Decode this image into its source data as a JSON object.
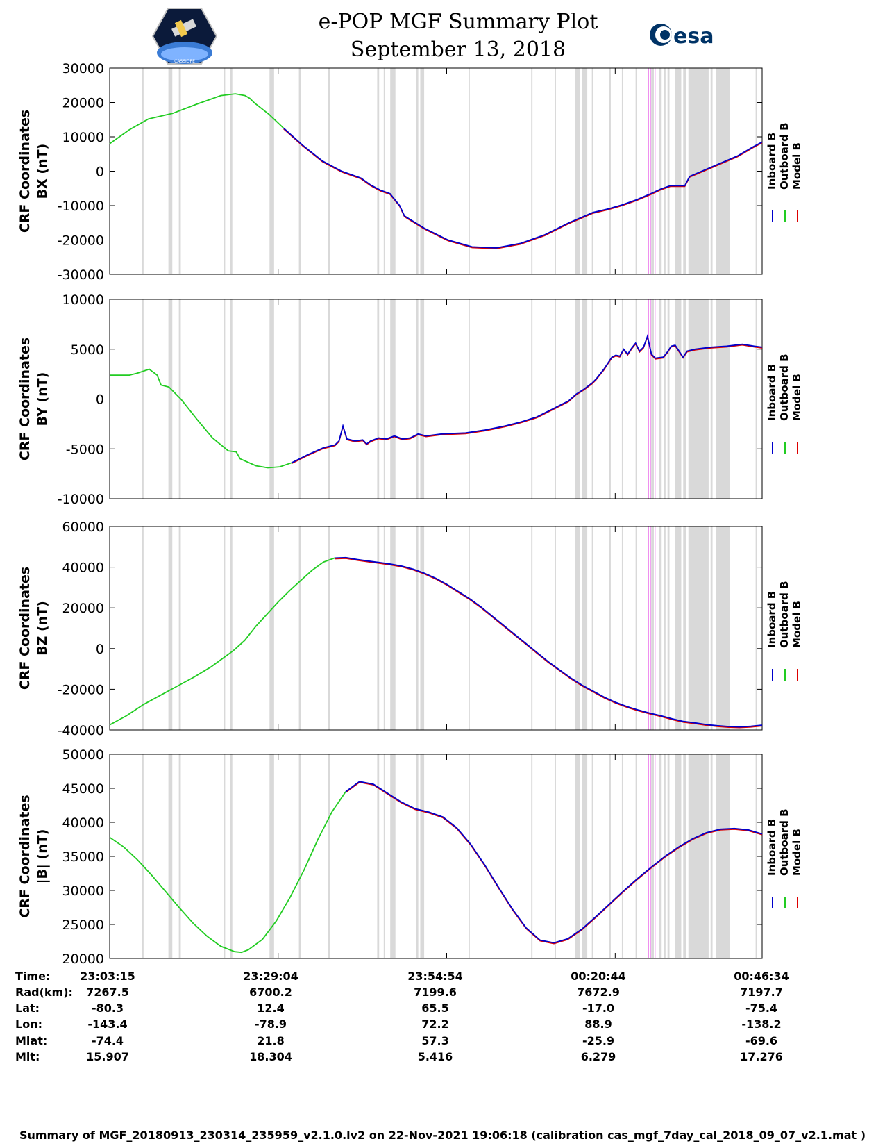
{
  "title": {
    "line1": "e-POP MGF Summary Plot",
    "line2": "September 13, 2018",
    "left_logo": "CASSIOPE",
    "right_logo": "esa"
  },
  "legend_labels": [
    "Inboard B",
    "Outboard B",
    "Model B"
  ],
  "series_colors": {
    "inboard": "#0000cc",
    "outboard": "#22cc22",
    "model": "#dd0000",
    "gap": "#d9d9d9",
    "pink": "#ee88ee"
  },
  "x_axis": {
    "range_minutes": [
      0,
      100
    ],
    "tick_minutes": [
      0,
      25.82,
      51.65,
      77.48,
      103.32
    ]
  },
  "gap_bands_minutes": [
    [
      5,
      5.2
    ],
    [
      9,
      9.6
    ],
    [
      10.6,
      10.9
    ],
    [
      17.5,
      17.7
    ],
    [
      18.5,
      18.8
    ],
    [
      24.5,
      25.2
    ],
    [
      29,
      29.3
    ],
    [
      33.5,
      33.8
    ],
    [
      41,
      41.3
    ],
    [
      42,
      42.2
    ],
    [
      43,
      43.8
    ],
    [
      47,
      47.3
    ],
    [
      47.6,
      48.2
    ],
    [
      55,
      55.2
    ],
    [
      64.6,
      64.8
    ],
    [
      68.2,
      68.4
    ],
    [
      71.3,
      72.1
    ],
    [
      72.4,
      73.2
    ],
    [
      73.9,
      74
    ],
    [
      76.5,
      76.8
    ],
    [
      78.5,
      78.7
    ],
    [
      80.6,
      80.8
    ],
    [
      83,
      83.4
    ],
    [
      84.2,
      84.6
    ],
    [
      84.9,
      85.2
    ],
    [
      85.5,
      85.8
    ],
    [
      86.6,
      87.6
    ],
    [
      87.9,
      88.3
    ],
    [
      88.7,
      91.8
    ],
    [
      92.1,
      92.4
    ],
    [
      92.9,
      95.1
    ],
    [
      99,
      99.2
    ]
  ],
  "pink_lines_minutes": [
    82.6,
    82.9,
    83.6
  ],
  "footer": "Summary of MGF_20180913_230314_235959_v2.1.0.lv2 on 22-Nov-2021 19:06:18 (calibration cas_mgf_7day_cal_2018_09_07_v2.1.mat )",
  "table": {
    "labels": [
      "Time:",
      "Rad(km):",
      "Lat:",
      "Lon:",
      "Mlat:",
      "Mlt:"
    ],
    "columns": [
      [
        "23:03:15",
        "7267.5",
        "-80.3",
        "-143.4",
        "-74.4",
        "15.907"
      ],
      [
        "23:29:04",
        "6700.2",
        "12.4",
        "-78.9",
        "21.8",
        "18.304"
      ],
      [
        "23:54:54",
        "7199.6",
        "65.5",
        "72.2",
        "57.3",
        "5.416"
      ],
      [
        "00:20:44",
        "7672.9",
        "-17.0",
        "88.9",
        "-25.9",
        "6.279"
      ],
      [
        "00:46:34",
        "7197.7",
        "-75.4",
        "-138.2",
        "-69.6",
        "17.276"
      ]
    ]
  },
  "chart_data": [
    {
      "type": "line",
      "ylabel_line1": "CRF Coordinates",
      "ylabel_line2": "BX (nT)",
      "ylim": [
        -30000,
        30000
      ],
      "yticks": [
        30000,
        20000,
        10000,
        0,
        -10000,
        -20000,
        -30000
      ],
      "ytick_labels": [
        "30000",
        "20000",
        "10000",
        "0",
        "-10000",
        "-20000",
        "-30000"
      ],
      "green_until": 36,
      "points": [
        [
          0,
          8000
        ],
        [
          4,
          12000
        ],
        [
          8,
          15200
        ],
        [
          13,
          16800
        ],
        [
          18,
          19500
        ],
        [
          23,
          22000
        ],
        [
          26,
          22500
        ],
        [
          28,
          22000
        ],
        [
          29,
          21200
        ],
        [
          30,
          19800
        ],
        [
          33,
          16500
        ],
        [
          36,
          12500
        ],
        [
          40,
          7500
        ],
        [
          44,
          3000
        ],
        [
          48,
          0
        ],
        [
          52,
          -2000
        ],
        [
          54,
          -4000
        ],
        [
          56,
          -5500
        ],
        [
          58,
          -6500
        ],
        [
          60,
          -10000
        ],
        [
          61,
          -13000
        ],
        [
          65,
          -16500
        ],
        [
          70,
          -20000
        ],
        [
          75,
          -22000
        ],
        [
          80,
          -22300
        ],
        [
          85,
          -21000
        ],
        [
          90,
          -18500
        ],
        [
          95,
          -15000
        ],
        [
          100,
          -12000
        ],
        [
          103,
          -11000
        ],
        [
          106,
          -9800
        ],
        [
          109,
          -8300
        ],
        [
          112,
          -6500
        ],
        [
          114,
          -5200
        ],
        [
          116,
          -4200
        ],
        [
          119,
          -4200
        ],
        [
          120,
          -1500
        ],
        [
          125,
          1500
        ],
        [
          130,
          4500
        ],
        [
          133,
          7000
        ],
        [
          135,
          8500
        ]
      ],
      "x_scale_max": 135
    },
    {
      "type": "line",
      "ylabel_line1": "CRF Coordinates",
      "ylabel_line2": "BY (nT)",
      "ylim": [
        -10000,
        10000
      ],
      "yticks": [
        10000,
        5000,
        0,
        -5000,
        -10000
      ],
      "ytick_labels": [
        "10000",
        "5000",
        "0",
        "-5000",
        "-10000"
      ],
      "green_until": 46,
      "points": [
        [
          0,
          2400
        ],
        [
          5,
          2400
        ],
        [
          7,
          2600
        ],
        [
          10,
          3000
        ],
        [
          12,
          2400
        ],
        [
          13,
          1400
        ],
        [
          15,
          1200
        ],
        [
          18,
          0
        ],
        [
          22,
          -2000
        ],
        [
          26,
          -3900
        ],
        [
          30,
          -5200
        ],
        [
          32,
          -5300
        ],
        [
          33,
          -6000
        ],
        [
          37,
          -6700
        ],
        [
          40,
          -6900
        ],
        [
          43,
          -6800
        ],
        [
          46,
          -6400
        ],
        [
          50,
          -5600
        ],
        [
          54,
          -4900
        ],
        [
          57,
          -4600
        ],
        [
          58,
          -4200
        ],
        [
          59,
          -2700
        ],
        [
          60,
          -4000
        ],
        [
          62,
          -4200
        ],
        [
          64,
          -4100
        ],
        [
          65,
          -4500
        ],
        [
          66,
          -4200
        ],
        [
          68,
          -3900
        ],
        [
          70,
          -4000
        ],
        [
          72,
          -3700
        ],
        [
          74,
          -4000
        ],
        [
          76,
          -3900
        ],
        [
          78,
          -3500
        ],
        [
          80,
          -3700
        ],
        [
          84,
          -3500
        ],
        [
          90,
          -3400
        ],
        [
          95,
          -3100
        ],
        [
          100,
          -2700
        ],
        [
          104,
          -2300
        ],
        [
          108,
          -1800
        ],
        [
          110,
          -1400
        ],
        [
          112,
          -1000
        ],
        [
          114,
          -600
        ],
        [
          116,
          -200
        ],
        [
          118,
          500
        ],
        [
          120,
          1000
        ],
        [
          122,
          1600
        ],
        [
          123,
          2000
        ],
        [
          124,
          2500
        ],
        [
          125,
          3000
        ],
        [
          126,
          3600
        ],
        [
          127,
          4200
        ],
        [
          128,
          4400
        ],
        [
          129,
          4300
        ],
        [
          130,
          5000
        ],
        [
          131,
          4500
        ],
        [
          132,
          5100
        ],
        [
          133,
          5600
        ],
        [
          134,
          4800
        ],
        [
          135,
          5200
        ],
        [
          136,
          6300
        ],
        [
          137,
          4500
        ],
        [
          138,
          4100
        ],
        [
          140,
          4200
        ],
        [
          141,
          4700
        ],
        [
          142,
          5300
        ],
        [
          143,
          5400
        ],
        [
          145,
          4200
        ],
        [
          146,
          4800
        ],
        [
          148,
          5000
        ],
        [
          152,
          5200
        ],
        [
          156,
          5300
        ],
        [
          160,
          5500
        ],
        [
          163,
          5300
        ],
        [
          165,
          5200
        ]
      ],
      "x_scale_max": 165
    },
    {
      "type": "line",
      "ylabel_line1": "CRF Coordinates",
      "ylabel_line2": "BZ (nT)",
      "ylim": [
        -40000,
        60000
      ],
      "yticks": [
        60000,
        40000,
        20000,
        0,
        -20000,
        -40000
      ],
      "ytick_labels": [
        "60000",
        "40000",
        "20000",
        "0",
        "-20000",
        "-40000"
      ],
      "green_until": 40.5,
      "points": [
        [
          0,
          -37500
        ],
        [
          3,
          -33000
        ],
        [
          6,
          -27500
        ],
        [
          9,
          -23000
        ],
        [
          12,
          -18500
        ],
        [
          15,
          -14000
        ],
        [
          18,
          -9000
        ],
        [
          20,
          -5000
        ],
        [
          22,
          -1000
        ],
        [
          24,
          4000
        ],
        [
          26,
          11000
        ],
        [
          28,
          17000
        ],
        [
          30,
          23000
        ],
        [
          32,
          28500
        ],
        [
          34,
          33500
        ],
        [
          36,
          38500
        ],
        [
          38,
          42500
        ],
        [
          40,
          44500
        ],
        [
          42,
          44700
        ],
        [
          44,
          43800
        ],
        [
          46,
          43000
        ],
        [
          48,
          42300
        ],
        [
          50,
          41500
        ],
        [
          52,
          40500
        ],
        [
          54,
          39000
        ],
        [
          56,
          37000
        ],
        [
          58,
          34500
        ],
        [
          60,
          31500
        ],
        [
          62,
          28000
        ],
        [
          64,
          24500
        ],
        [
          66,
          20500
        ],
        [
          68,
          16000
        ],
        [
          70,
          11500
        ],
        [
          72,
          7000
        ],
        [
          74,
          2500
        ],
        [
          76,
          -2000
        ],
        [
          78,
          -6500
        ],
        [
          80,
          -10500
        ],
        [
          82,
          -14500
        ],
        [
          84,
          -18000
        ],
        [
          86,
          -21000
        ],
        [
          88,
          -24000
        ],
        [
          90,
          -26500
        ],
        [
          92,
          -28500
        ],
        [
          94,
          -30200
        ],
        [
          96,
          -31700
        ],
        [
          98,
          -33000
        ],
        [
          100,
          -34500
        ],
        [
          102,
          -35800
        ],
        [
          104,
          -36500
        ],
        [
          106,
          -37300
        ],
        [
          108,
          -37900
        ],
        [
          110,
          -38300
        ],
        [
          112,
          -38500
        ],
        [
          114,
          -38200
        ],
        [
          116,
          -37600
        ]
      ],
      "x_scale_max": 116
    },
    {
      "type": "line",
      "ylabel_line1": "CRF Coordinates",
      "ylabel_line2": "|B| (nT)",
      "ylim": [
        20000,
        50000
      ],
      "yticks": [
        50000,
        45000,
        40000,
        35000,
        30000,
        25000,
        20000
      ],
      "ytick_labels": [
        "50000",
        "45000",
        "40000",
        "35000",
        "30000",
        "25000",
        "20000"
      ],
      "green_until": 34.5,
      "points": [
        [
          0,
          37800
        ],
        [
          2,
          36400
        ],
        [
          4,
          34500
        ],
        [
          6,
          32300
        ],
        [
          8,
          29900
        ],
        [
          10,
          27500
        ],
        [
          12,
          25200
        ],
        [
          14,
          23300
        ],
        [
          16,
          21800
        ],
        [
          18,
          21000
        ],
        [
          19,
          20900
        ],
        [
          20,
          21300
        ],
        [
          22,
          22800
        ],
        [
          24,
          25500
        ],
        [
          26,
          29000
        ],
        [
          28,
          33000
        ],
        [
          30,
          37500
        ],
        [
          32,
          41500
        ],
        [
          34,
          44500
        ],
        [
          36,
          46000
        ],
        [
          38,
          45600
        ],
        [
          40,
          44300
        ],
        [
          42,
          43000
        ],
        [
          44,
          42000
        ],
        [
          46,
          41500
        ],
        [
          48,
          40800
        ],
        [
          50,
          39200
        ],
        [
          52,
          36800
        ],
        [
          54,
          33800
        ],
        [
          56,
          30500
        ],
        [
          58,
          27300
        ],
        [
          60,
          24500
        ],
        [
          62,
          22700
        ],
        [
          64,
          22300
        ],
        [
          66,
          22900
        ],
        [
          68,
          24300
        ],
        [
          70,
          26100
        ],
        [
          72,
          28000
        ],
        [
          74,
          29900
        ],
        [
          76,
          31700
        ],
        [
          78,
          33400
        ],
        [
          80,
          35000
        ],
        [
          82,
          36400
        ],
        [
          84,
          37600
        ],
        [
          86,
          38500
        ],
        [
          88,
          39000
        ],
        [
          90,
          39100
        ],
        [
          92,
          38900
        ],
        [
          94,
          38300
        ]
      ],
      "x_scale_max": 94
    }
  ]
}
